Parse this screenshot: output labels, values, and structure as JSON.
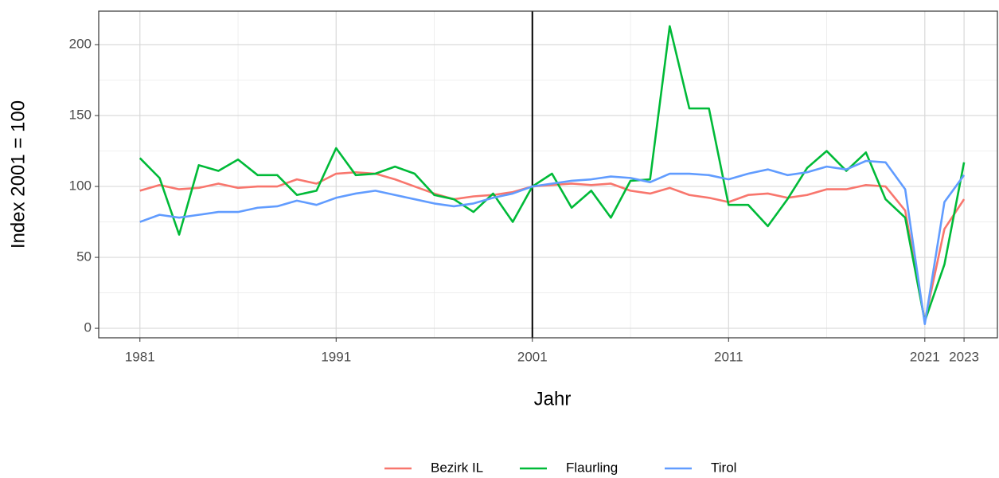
{
  "chart_data": {
    "type": "line",
    "x_label": "Jahr",
    "y_label": "Index 2001 = 100",
    "x": [
      1981,
      1982,
      1983,
      1984,
      1985,
      1986,
      1987,
      1988,
      1989,
      1990,
      1991,
      1992,
      1993,
      1994,
      1995,
      1996,
      1997,
      1998,
      1999,
      2000,
      2001,
      2002,
      2003,
      2004,
      2005,
      2006,
      2007,
      2008,
      2009,
      2010,
      2011,
      2012,
      2013,
      2014,
      2015,
      2016,
      2017,
      2018,
      2019,
      2020,
      2021,
      2022,
      2023
    ],
    "series": [
      {
        "name": "Bezirk IL",
        "color": "#F8766D",
        "values": [
          97,
          101,
          98,
          99,
          102,
          99,
          100,
          100,
          105,
          102,
          109,
          110,
          109,
          105,
          100,
          95,
          91,
          93,
          94,
          96,
          100,
          101,
          102,
          101,
          102,
          97,
          95,
          99,
          94,
          92,
          89,
          94,
          95,
          92,
          94,
          98,
          98,
          101,
          100,
          83,
          5,
          70,
          91
        ]
      },
      {
        "name": "Flaurling",
        "color": "#00BA38",
        "values": [
          120,
          106,
          66,
          115,
          111,
          119,
          108,
          108,
          94,
          97,
          127,
          108,
          109,
          114,
          109,
          94,
          91,
          82,
          95,
          75,
          100,
          109,
          85,
          97,
          78,
          104,
          105,
          213,
          155,
          155,
          87,
          87,
          72,
          91,
          113,
          125,
          111,
          124,
          91,
          78,
          5,
          45,
          117
        ]
      },
      {
        "name": "Tirol",
        "color": "#619CFF",
        "values": [
          75,
          80,
          78,
          80,
          82,
          82,
          85,
          86,
          90,
          87,
          92,
          95,
          97,
          94,
          91,
          88,
          86,
          88,
          92,
          95,
          100,
          102,
          104,
          105,
          107,
          106,
          103,
          109,
          109,
          108,
          105,
          109,
          112,
          108,
          110,
          114,
          112,
          118,
          117,
          98,
          3,
          89,
          108
        ]
      }
    ],
    "xlim": [
      1978.9,
      2024.7
    ],
    "ylim": [
      -6.7,
      223.6
    ],
    "xticks": [
      1981,
      1991,
      2001,
      2011,
      2021,
      2023
    ],
    "yticks": [
      0,
      50,
      100,
      150,
      200
    ],
    "xminor": [
      1986,
      1996,
      2006,
      2016
    ],
    "yminor": [
      25,
      75,
      125,
      175
    ],
    "vline": 2001,
    "grid": true,
    "legend": "bottom"
  }
}
